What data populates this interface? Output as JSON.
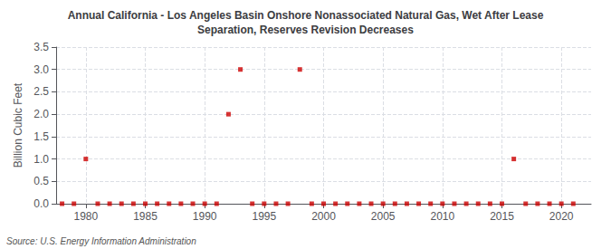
{
  "chart_data": {
    "type": "scatter",
    "title": "Annual California - Los Angeles Basin Onshore Nonassociated Natural Gas, Wet After Lease\nSeparation, Reserves Revision Decreases",
    "ylabel": "Billion Cubic Feet",
    "source": "Source: U.S. Energy Information Administration",
    "x": [
      1978,
      1979,
      1980,
      1981,
      1982,
      1983,
      1984,
      1985,
      1986,
      1987,
      1988,
      1989,
      1990,
      1991,
      1992,
      1993,
      1994,
      1995,
      1996,
      1997,
      1998,
      1999,
      2000,
      2001,
      2002,
      2003,
      2004,
      2005,
      2006,
      2007,
      2008,
      2009,
      2010,
      2011,
      2012,
      2013,
      2014,
      2015,
      2016,
      2017,
      2018,
      2019,
      2020,
      2021
    ],
    "values": [
      0.0,
      0.0,
      1.0,
      0.0,
      0.0,
      0.0,
      0.0,
      0.0,
      0.0,
      0.0,
      0.0,
      0.0,
      0.0,
      0.0,
      2.0,
      3.0,
      0.0,
      0.0,
      0.0,
      0.0,
      3.0,
      0.0,
      0.0,
      0.0,
      0.0,
      0.0,
      0.0,
      0.0,
      0.0,
      0.0,
      0.0,
      0.0,
      0.0,
      0.0,
      0.0,
      0.0,
      0.0,
      0.0,
      1.0,
      0.0,
      0.0,
      0.0,
      0.0,
      0.0
    ],
    "color": "#cc0000",
    "marker": "square",
    "xlim": [
      1977.5,
      2022.5
    ],
    "xticks": [
      1980,
      1985,
      1990,
      1995,
      2000,
      2005,
      2010,
      2015,
      2020
    ],
    "ylim": [
      0.0,
      3.5
    ],
    "yticks": [
      {
        "value": 0.0,
        "label": "0.0"
      },
      0.5,
      {
        "value": 1.0,
        "label": "1.0"
      },
      1.5,
      {
        "value": 2.0,
        "label": "2.0"
      },
      2.5,
      {
        "value": 3.0,
        "label": "3.0"
      },
      3.5
    ],
    "grid": true
  }
}
